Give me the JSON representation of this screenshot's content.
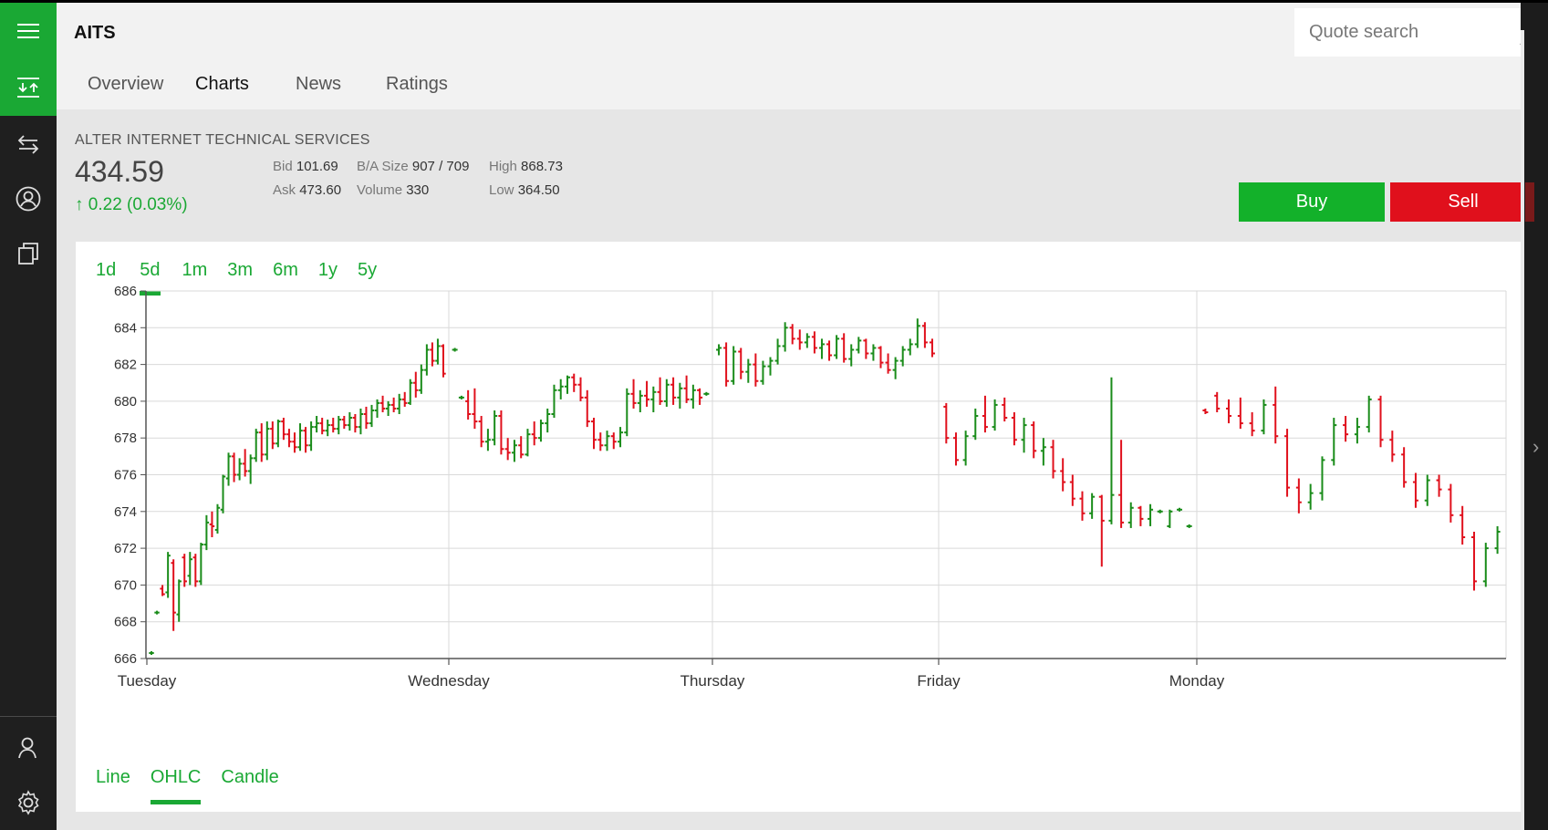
{
  "app": {
    "ticker": "AITS"
  },
  "rail": {
    "items": [
      "menu-icon",
      "watchlist-icon",
      "transfer-icon",
      "account-icon",
      "portfolio-icon",
      "profile-icon",
      "settings-icon"
    ]
  },
  "tabs": [
    "Overview",
    "Charts",
    "News",
    "Ratings"
  ],
  "tabs_selected": "Charts",
  "search": {
    "placeholder": "Quote search"
  },
  "quote": {
    "company": "ALTER INTERNET TECHNICAL SERVICES",
    "price": "434.59",
    "change": "0.22 (0.03%)",
    "bid_label": "Bid",
    "bid": "101.69",
    "ask_label": "Ask",
    "ask": "473.60",
    "ba_size_label": "B/A Size",
    "ba_size": "907 / 709",
    "volume_label": "Volume",
    "volume": "330",
    "high_label": "High",
    "high": "868.73",
    "low_label": "Low",
    "low": "364.50"
  },
  "actions": {
    "buy": "Buy",
    "sell": "Sell"
  },
  "colors": {
    "accent": "#1aa834",
    "up": "#1a8c1a",
    "down": "#e0101c",
    "sell": "#e0101c",
    "buy": "#13b12a"
  },
  "ranges": [
    "1d",
    "5d",
    "1m",
    "3m",
    "6m",
    "1y",
    "5y"
  ],
  "range_selected": "5d",
  "modes": [
    "Line",
    "OHLC",
    "Candle"
  ],
  "mode_selected": "OHLC",
  "chart_data": {
    "type": "ohlc",
    "xlabel": "",
    "ylabel": "",
    "ylim": [
      666,
      686
    ],
    "yticks": [
      666,
      668,
      670,
      672,
      674,
      676,
      678,
      680,
      682,
      684,
      686
    ],
    "days": [
      "Tuesday",
      "Wednesday",
      "Thursday",
      "Friday",
      "Monday"
    ],
    "grid": true,
    "series": [
      {
        "day": "Tuesday",
        "bars": [
          [
            666.3,
            666.4,
            666.2,
            666.3
          ],
          [
            668.5,
            668.6,
            668.4,
            668.5
          ],
          [
            669.8,
            670.0,
            669.4,
            669.5
          ],
          [
            669.6,
            671.8,
            669.3,
            671.6
          ],
          [
            671.2,
            671.4,
            667.5,
            668.5
          ],
          [
            668.4,
            670.3,
            668.0,
            670.2
          ],
          [
            671.5,
            671.7,
            669.9,
            670.2
          ],
          [
            670.5,
            671.8,
            670.0,
            671.4
          ],
          [
            671.5,
            671.7,
            669.9,
            670.2
          ],
          [
            670.2,
            672.3,
            670.0,
            672.2
          ],
          [
            672.2,
            673.8,
            671.9,
            673.4
          ],
          [
            673.3,
            674.0,
            672.6,
            673.2
          ],
          [
            673.0,
            674.4,
            672.8,
            674.2
          ],
          [
            674.1,
            676.0,
            673.9,
            675.9
          ],
          [
            675.8,
            677.2,
            675.4,
            677.0
          ],
          [
            677.0,
            677.2,
            675.6,
            676.0
          ],
          [
            676.0,
            676.9,
            675.7,
            676.6
          ],
          [
            676.6,
            677.4,
            675.9,
            676.2
          ],
          [
            676.2,
            677.1,
            675.5,
            676.9
          ],
          [
            676.9,
            678.5,
            676.7,
            678.3
          ],
          [
            678.3,
            678.8,
            676.7,
            677.1
          ],
          [
            677.1,
            678.9,
            676.8,
            678.5
          ],
          [
            678.5,
            678.9,
            677.4,
            677.7
          ],
          [
            677.7,
            679.0,
            677.5,
            678.9
          ],
          [
            678.9,
            679.1,
            677.9,
            678.2
          ],
          [
            678.2,
            678.5,
            677.5,
            677.8
          ],
          [
            677.8,
            678.3,
            677.2,
            677.5
          ],
          [
            677.5,
            678.8,
            677.3,
            678.4
          ],
          [
            678.4,
            678.6,
            677.2,
            677.6
          ],
          [
            677.6,
            678.9,
            677.3,
            678.6
          ],
          [
            678.6,
            679.2,
            678.3,
            678.8
          ],
          [
            678.8,
            679.1,
            678.2,
            678.4
          ],
          [
            678.4,
            679.0,
            678.1,
            678.7
          ],
          [
            678.7,
            679.1,
            678.3,
            678.5
          ],
          [
            678.5,
            679.2,
            678.2,
            679.0
          ],
          [
            679.0,
            679.2,
            678.5,
            678.7
          ],
          [
            678.7,
            679.4,
            678.4,
            679.1
          ],
          [
            679.1,
            679.3,
            678.3,
            678.6
          ],
          [
            678.6,
            679.6,
            678.2,
            679.3
          ],
          [
            679.3,
            679.7,
            678.5,
            678.8
          ],
          [
            678.8,
            679.8,
            678.6,
            679.5
          ],
          [
            679.5,
            680.1,
            679.1,
            679.9
          ],
          [
            679.9,
            680.3,
            679.4,
            679.6
          ],
          [
            679.6,
            680.0,
            679.2,
            679.8
          ],
          [
            679.8,
            680.2,
            679.4,
            679.6
          ],
          [
            679.6,
            680.4,
            679.3,
            680.1
          ],
          [
            680.1,
            680.5,
            679.7,
            679.9
          ],
          [
            679.9,
            681.2,
            679.8,
            681.0
          ],
          [
            681.0,
            681.6,
            680.2,
            680.6
          ],
          [
            680.6,
            682.0,
            680.4,
            681.7
          ],
          [
            681.7,
            683.1,
            681.4,
            682.8
          ],
          [
            682.8,
            683.2,
            681.9,
            682.2
          ],
          [
            682.2,
            683.4,
            682.0,
            683.0
          ],
          [
            683.0,
            683.1,
            681.3,
            681.5
          ]
        ]
      },
      {
        "day": "Wednesday",
        "bars": [
          [
            682.8,
            682.9,
            682.7,
            682.8
          ],
          [
            680.2,
            680.3,
            680.1,
            680.2
          ],
          [
            680.0,
            680.6,
            679.0,
            679.3
          ],
          [
            679.3,
            680.7,
            678.5,
            678.9
          ],
          [
            678.9,
            679.2,
            677.5,
            677.8
          ],
          [
            677.8,
            678.5,
            677.3,
            677.9
          ],
          [
            677.9,
            679.5,
            677.6,
            679.2
          ],
          [
            679.2,
            679.5,
            677.1,
            677.4
          ],
          [
            677.4,
            678.0,
            676.8,
            677.2
          ],
          [
            677.2,
            677.9,
            676.7,
            677.6
          ],
          [
            677.6,
            678.1,
            676.9,
            677.1
          ],
          [
            677.1,
            678.5,
            677.0,
            678.2
          ],
          [
            678.2,
            678.9,
            677.6,
            678.0
          ],
          [
            678.0,
            679.0,
            677.8,
            678.8
          ],
          [
            678.8,
            679.6,
            678.3,
            679.3
          ],
          [
            679.3,
            680.9,
            679.1,
            680.6
          ],
          [
            680.6,
            681.2,
            680.1,
            680.8
          ],
          [
            680.8,
            681.4,
            680.4,
            681.3
          ],
          [
            681.3,
            681.5,
            680.5,
            680.9
          ],
          [
            680.9,
            681.3,
            680.0,
            680.2
          ],
          [
            680.2,
            680.6,
            678.6,
            678.9
          ],
          [
            678.9,
            679.1,
            677.4,
            677.9
          ],
          [
            677.9,
            678.3,
            677.3,
            677.6
          ],
          [
            677.6,
            678.4,
            677.3,
            678.1
          ],
          [
            678.1,
            678.3,
            677.4,
            677.8
          ],
          [
            677.8,
            678.6,
            677.5,
            678.3
          ],
          [
            678.3,
            680.7,
            678.1,
            680.4
          ],
          [
            680.4,
            681.2,
            679.6,
            679.9
          ],
          [
            679.9,
            680.6,
            679.4,
            680.3
          ],
          [
            680.3,
            681.1,
            679.7,
            680.1
          ],
          [
            680.1,
            680.8,
            679.4,
            680.5
          ],
          [
            680.5,
            681.3,
            679.8,
            680.0
          ],
          [
            680.0,
            681.2,
            679.7,
            680.9
          ],
          [
            680.9,
            681.3,
            679.8,
            680.2
          ],
          [
            680.2,
            681.0,
            679.6,
            680.7
          ],
          [
            680.7,
            681.4,
            679.9,
            680.1
          ],
          [
            680.1,
            680.9,
            679.6,
            680.6
          ],
          [
            680.6,
            680.7,
            679.8,
            680.2
          ],
          [
            680.4,
            680.5,
            680.3,
            680.4
          ]
        ]
      },
      {
        "day": "Thursday",
        "bars": [
          [
            682.8,
            683.1,
            682.5,
            682.9
          ],
          [
            682.9,
            683.2,
            680.8,
            681.1
          ],
          [
            681.1,
            683.0,
            680.9,
            682.7
          ],
          [
            682.7,
            682.9,
            681.2,
            681.6
          ],
          [
            681.6,
            682.3,
            681.0,
            682.0
          ],
          [
            682.0,
            682.6,
            680.8,
            681.1
          ],
          [
            681.1,
            682.2,
            680.9,
            681.9
          ],
          [
            681.9,
            682.4,
            681.4,
            682.2
          ],
          [
            682.2,
            683.4,
            682.0,
            683.0
          ],
          [
            683.0,
            684.3,
            682.7,
            684.0
          ],
          [
            684.0,
            684.2,
            683.1,
            683.4
          ],
          [
            683.4,
            683.9,
            682.8,
            683.2
          ],
          [
            683.2,
            683.7,
            682.9,
            683.5
          ],
          [
            683.5,
            683.8,
            682.6,
            682.9
          ],
          [
            682.9,
            683.4,
            682.3,
            683.1
          ],
          [
            683.1,
            683.3,
            682.2,
            682.5
          ],
          [
            682.5,
            683.6,
            682.3,
            683.4
          ],
          [
            683.4,
            683.7,
            682.1,
            682.3
          ],
          [
            682.3,
            683.1,
            681.9,
            682.8
          ],
          [
            682.8,
            683.5,
            682.6,
            683.3
          ],
          [
            683.3,
            683.4,
            682.3,
            682.6
          ],
          [
            682.6,
            683.1,
            682.2,
            682.9
          ],
          [
            682.9,
            683.0,
            681.8,
            682.1
          ],
          [
            682.1,
            682.6,
            681.5,
            681.7
          ],
          [
            681.7,
            682.4,
            681.2,
            682.2
          ],
          [
            682.2,
            683.0,
            681.9,
            682.8
          ],
          [
            682.8,
            683.4,
            682.5,
            683.1
          ],
          [
            683.1,
            684.5,
            682.9,
            684.1
          ],
          [
            684.1,
            684.3,
            682.9,
            683.2
          ],
          [
            683.2,
            683.4,
            682.4,
            682.6
          ]
        ]
      },
      {
        "day": "Friday",
        "bars": [
          [
            679.7,
            679.9,
            677.7,
            678.0
          ],
          [
            678.0,
            678.3,
            676.5,
            676.8
          ],
          [
            676.8,
            678.4,
            676.5,
            678.1
          ],
          [
            678.1,
            679.6,
            677.9,
            679.2
          ],
          [
            679.2,
            680.3,
            678.3,
            678.6
          ],
          [
            678.6,
            680.1,
            678.4,
            679.8
          ],
          [
            679.8,
            680.2,
            678.9,
            679.1
          ],
          [
            679.1,
            679.4,
            677.6,
            677.9
          ],
          [
            677.9,
            679.1,
            677.2,
            678.7
          ],
          [
            678.7,
            678.9,
            676.9,
            677.3
          ],
          [
            677.3,
            678.0,
            676.5,
            677.5
          ],
          [
            677.5,
            677.9,
            675.8,
            676.2
          ],
          [
            676.2,
            676.9,
            675.1,
            675.6
          ],
          [
            675.6,
            676.0,
            674.3,
            674.7
          ],
          [
            674.7,
            675.1,
            673.5,
            673.9
          ],
          [
            673.9,
            675.0,
            673.6,
            674.8
          ],
          [
            674.8,
            674.9,
            671.0,
            673.5
          ],
          [
            673.5,
            681.3,
            673.3,
            674.9
          ],
          [
            674.9,
            677.9,
            673.1,
            673.4
          ],
          [
            673.4,
            674.5,
            673.1,
            674.2
          ],
          [
            674.2,
            674.3,
            673.2,
            673.6
          ],
          [
            673.6,
            674.4,
            673.2,
            674.1
          ],
          [
            674.0,
            674.1,
            673.9,
            674.0
          ],
          [
            673.2,
            674.1,
            673.1,
            674.0
          ],
          [
            674.1,
            674.2,
            674.0,
            674.1
          ],
          [
            673.2,
            673.3,
            673.1,
            673.2
          ]
        ]
      },
      {
        "day": "Monday",
        "bars": [
          [
            679.5,
            679.6,
            679.3,
            679.4
          ],
          [
            680.3,
            680.5,
            679.4,
            679.6
          ],
          [
            679.6,
            680.1,
            678.8,
            679.2
          ],
          [
            679.2,
            680.2,
            678.5,
            678.8
          ],
          [
            678.8,
            679.4,
            678.1,
            678.4
          ],
          [
            678.4,
            680.1,
            678.2,
            679.8
          ],
          [
            679.8,
            680.8,
            677.7,
            678.1
          ],
          [
            678.1,
            678.5,
            674.8,
            675.3
          ],
          [
            675.3,
            675.8,
            673.9,
            674.5
          ],
          [
            674.5,
            675.5,
            674.1,
            675.0
          ],
          [
            675.0,
            677.0,
            674.6,
            676.8
          ],
          [
            676.8,
            679.1,
            676.5,
            678.7
          ],
          [
            678.7,
            679.2,
            677.8,
            678.2
          ],
          [
            678.2,
            679.1,
            677.7,
            678.6
          ],
          [
            678.6,
            680.3,
            678.3,
            680.1
          ],
          [
            680.1,
            680.3,
            677.5,
            677.9
          ],
          [
            677.9,
            678.4,
            676.7,
            677.1
          ],
          [
            677.1,
            677.5,
            675.3,
            675.6
          ],
          [
            675.6,
            676.1,
            674.2,
            674.6
          ],
          [
            674.6,
            676.0,
            674.3,
            675.7
          ],
          [
            675.7,
            676.0,
            674.8,
            675.2
          ],
          [
            675.2,
            675.5,
            673.4,
            673.8
          ],
          [
            673.8,
            674.3,
            672.2,
            672.6
          ],
          [
            672.6,
            672.9,
            669.7,
            670.2
          ],
          [
            670.2,
            672.3,
            669.9,
            672.0
          ],
          [
            672.0,
            673.2,
            671.7,
            672.9
          ]
        ]
      }
    ]
  }
}
